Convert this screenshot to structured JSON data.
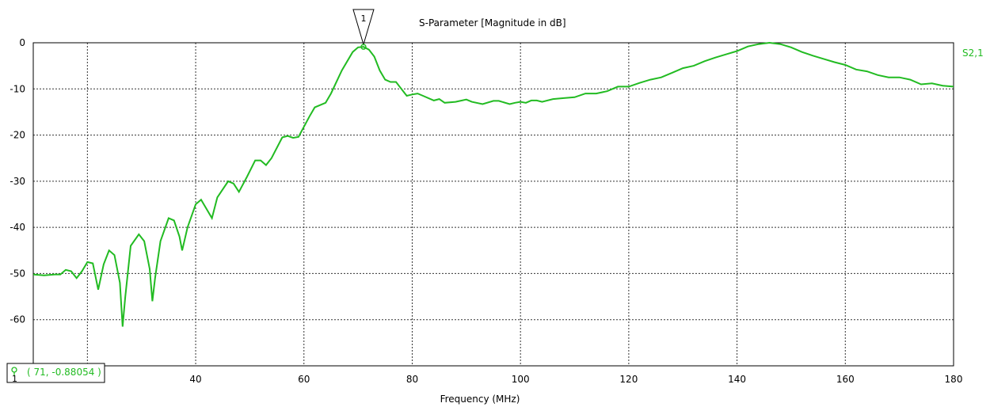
{
  "chart_data": {
    "type": "line",
    "title": "S-Parameter [Magnitude in dB]",
    "xlabel": "Frequency (MHz)",
    "ylabel": "",
    "xlim": [
      10,
      180
    ],
    "ylim": [
      -70,
      0
    ],
    "x_ticks": [
      20,
      40,
      60,
      80,
      100,
      120,
      140,
      160,
      180
    ],
    "y_ticks": [
      0,
      -10,
      -20,
      -30,
      -40,
      -50,
      -60
    ],
    "grid": true,
    "series": [
      {
        "name": "S2,1",
        "color": "#22bb22",
        "points": [
          [
            10,
            -50.2
          ],
          [
            12,
            -50.4
          ],
          [
            14,
            -50.2
          ],
          [
            15,
            -50.2
          ],
          [
            16,
            -49.2
          ],
          [
            17,
            -49.5
          ],
          [
            18,
            -51
          ],
          [
            19,
            -49.5
          ],
          [
            20,
            -47.5
          ],
          [
            21,
            -47.8
          ],
          [
            22,
            -53.5
          ],
          [
            23,
            -48
          ],
          [
            24,
            -45
          ],
          [
            25,
            -46
          ],
          [
            26,
            -52
          ],
          [
            26.5,
            -61.5
          ],
          [
            27,
            -55
          ],
          [
            28,
            -44
          ],
          [
            29.5,
            -41.5
          ],
          [
            30.5,
            -43
          ],
          [
            31.5,
            -49
          ],
          [
            32,
            -56
          ],
          [
            32.5,
            -51
          ],
          [
            33.5,
            -43
          ],
          [
            35,
            -38
          ],
          [
            36,
            -38.5
          ],
          [
            37,
            -42
          ],
          [
            37.5,
            -45
          ],
          [
            38.5,
            -40
          ],
          [
            40,
            -35
          ],
          [
            41,
            -34
          ],
          [
            42,
            -36
          ],
          [
            43,
            -38
          ],
          [
            44,
            -33.5
          ],
          [
            46,
            -30
          ],
          [
            47,
            -30.5
          ],
          [
            48,
            -32.3
          ],
          [
            49.5,
            -29
          ],
          [
            51,
            -25.5
          ],
          [
            52,
            -25.5
          ],
          [
            53,
            -26.5
          ],
          [
            54,
            -25
          ],
          [
            56,
            -20.5
          ],
          [
            57,
            -20.2
          ],
          [
            58,
            -20.6
          ],
          [
            59,
            -20.4
          ],
          [
            61,
            -16
          ],
          [
            62,
            -14
          ],
          [
            64,
            -13
          ],
          [
            65,
            -11
          ],
          [
            67,
            -6
          ],
          [
            69,
            -2
          ],
          [
            70,
            -1
          ],
          [
            71,
            -0.88
          ],
          [
            72,
            -1.5
          ],
          [
            73,
            -3
          ],
          [
            74,
            -6
          ],
          [
            75,
            -8
          ],
          [
            76,
            -8.5
          ],
          [
            77,
            -8.5
          ],
          [
            78,
            -10
          ],
          [
            79,
            -11.5
          ],
          [
            80,
            -11.2
          ],
          [
            81,
            -11
          ],
          [
            82,
            -11.5
          ],
          [
            84,
            -12.5
          ],
          [
            85,
            -12.2
          ],
          [
            86,
            -13
          ],
          [
            88,
            -12.8
          ],
          [
            90,
            -12.3
          ],
          [
            91,
            -12.8
          ],
          [
            93,
            -13.3
          ],
          [
            95,
            -12.6
          ],
          [
            96,
            -12.6
          ],
          [
            98,
            -13.3
          ],
          [
            99,
            -13
          ],
          [
            100,
            -12.8
          ],
          [
            101,
            -13
          ],
          [
            102,
            -12.5
          ],
          [
            103,
            -12.5
          ],
          [
            104,
            -12.8
          ],
          [
            106,
            -12.2
          ],
          [
            108,
            -12
          ],
          [
            110,
            -11.8
          ],
          [
            112,
            -11
          ],
          [
            114,
            -11
          ],
          [
            116,
            -10.5
          ],
          [
            118,
            -9.5
          ],
          [
            120,
            -9.5
          ],
          [
            122,
            -8.7
          ],
          [
            124,
            -8
          ],
          [
            126,
            -7.5
          ],
          [
            128,
            -6.5
          ],
          [
            130,
            -5.5
          ],
          [
            132,
            -5
          ],
          [
            134,
            -4
          ],
          [
            136,
            -3.2
          ],
          [
            138,
            -2.5
          ],
          [
            140,
            -1.8
          ],
          [
            142,
            -0.8
          ],
          [
            144,
            -0.3
          ],
          [
            146,
            0
          ],
          [
            148,
            -0.3
          ],
          [
            150,
            -1
          ],
          [
            152,
            -2
          ],
          [
            154,
            -2.8
          ],
          [
            156,
            -3.5
          ],
          [
            158,
            -4.2
          ],
          [
            160,
            -4.8
          ],
          [
            162,
            -5.8
          ],
          [
            164,
            -6.2
          ],
          [
            166,
            -7
          ],
          [
            168,
            -7.5
          ],
          [
            170,
            -7.5
          ],
          [
            172,
            -8
          ],
          [
            174,
            -9
          ],
          [
            176,
            -8.8
          ],
          [
            178,
            -9.3
          ],
          [
            180,
            -9.5
          ]
        ]
      }
    ],
    "marker": {
      "id": "1",
      "x": 71,
      "y": -0.88054
    },
    "readout": {
      "index": "1",
      "text": "( 71, -0.88054 )"
    }
  }
}
